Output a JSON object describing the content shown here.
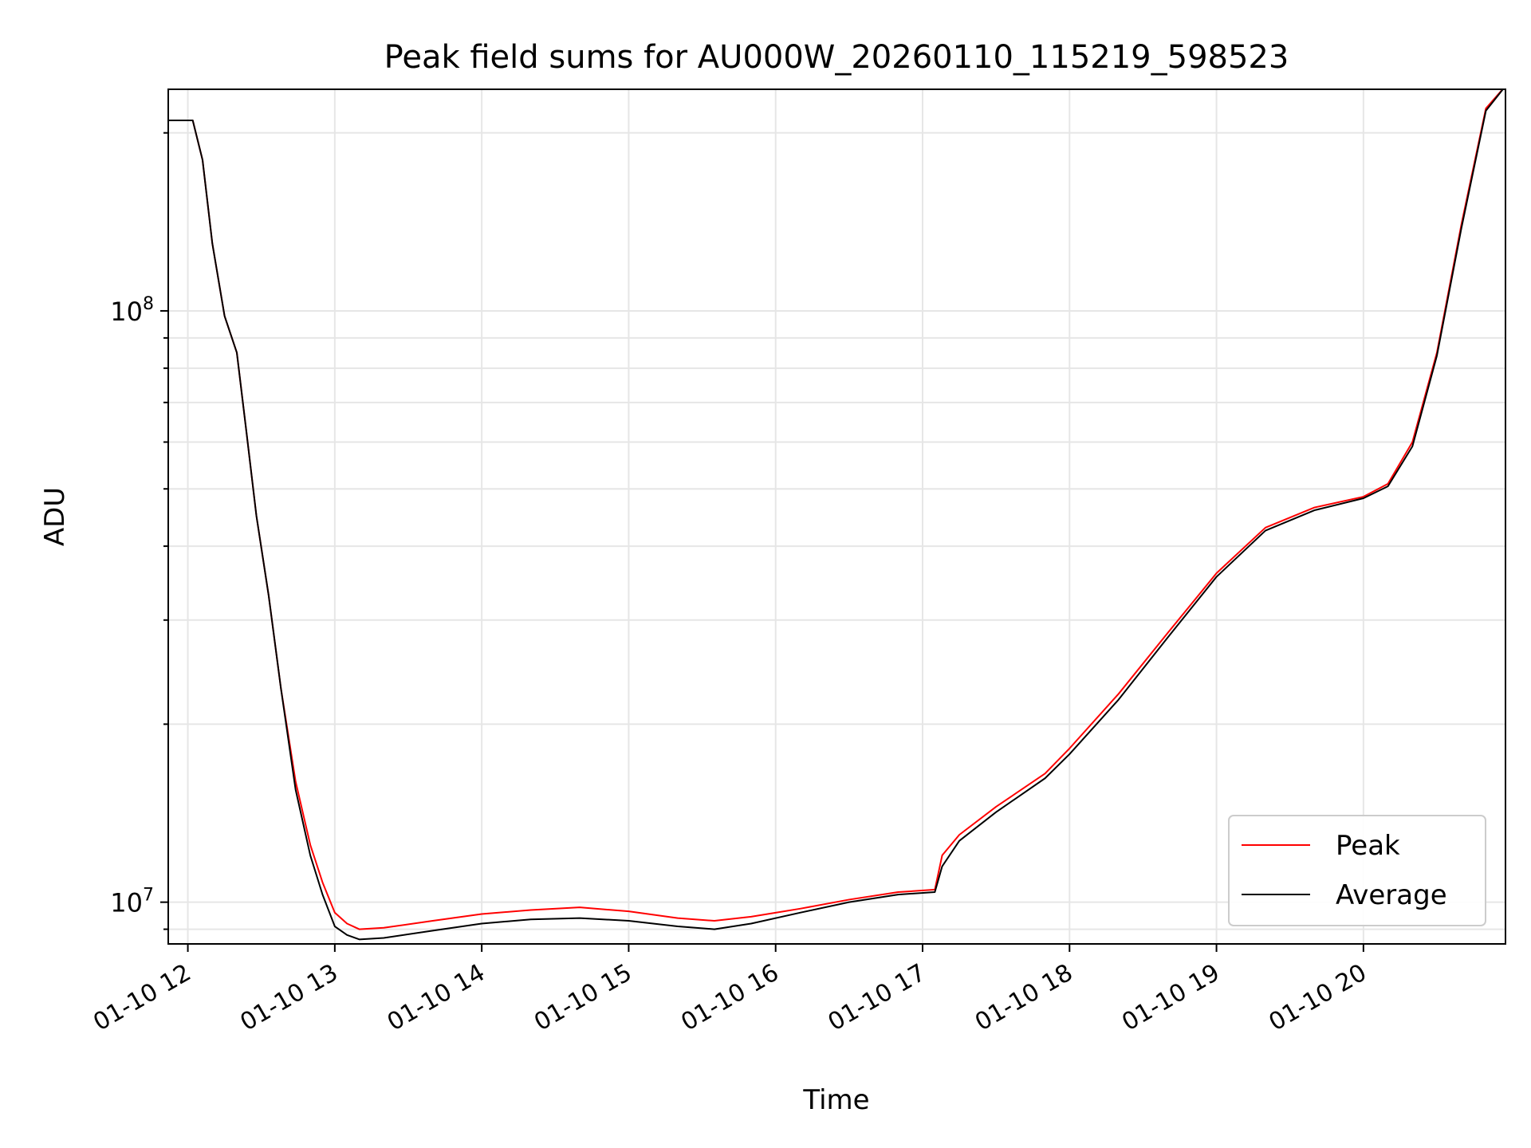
{
  "chart_data": {
    "type": "line",
    "title": "Peak field sums for AU000W_20260110_115219_598523",
    "xlabel": "Time",
    "ylabel": "ADU",
    "y_scale": "log",
    "grid": true,
    "grid_color": "#e6e6e6",
    "legend_position": "lower-right",
    "xlim": [
      "2026-01-10 11:52",
      "2026-01-10 20:58"
    ],
    "ylim": [
      8500000,
      237000000
    ],
    "x_ticks": [
      {
        "t": "2026-01-10 12:00",
        "label": "01-10 12"
      },
      {
        "t": "2026-01-10 13:00",
        "label": "01-10 13"
      },
      {
        "t": "2026-01-10 14:00",
        "label": "01-10 14"
      },
      {
        "t": "2026-01-10 15:00",
        "label": "01-10 15"
      },
      {
        "t": "2026-01-10 16:00",
        "label": "01-10 16"
      },
      {
        "t": "2026-01-10 17:00",
        "label": "01-10 17"
      },
      {
        "t": "2026-01-10 18:00",
        "label": "01-10 18"
      },
      {
        "t": "2026-01-10 19:00",
        "label": "01-10 19"
      },
      {
        "t": "2026-01-10 20:00",
        "label": "01-10 20"
      }
    ],
    "y_major_ticks": [
      {
        "value": 10000000,
        "base": "10",
        "exp": "7"
      },
      {
        "value": 100000000,
        "base": "10",
        "exp": "8"
      }
    ],
    "x_unit": "time (HH:MM, 2026-01-10)",
    "series": [
      {
        "name": "Peak",
        "color": "#ff0000",
        "points": [
          [
            "11:52",
            210000000
          ],
          [
            "12:02",
            210000000
          ],
          [
            "12:06",
            180000000
          ],
          [
            "12:10",
            130000000
          ],
          [
            "12:15",
            98000000
          ],
          [
            "12:20",
            85000000
          ],
          [
            "12:24",
            62000000
          ],
          [
            "12:28",
            45000000
          ],
          [
            "12:33",
            33000000
          ],
          [
            "12:38",
            23000000
          ],
          [
            "12:44",
            16000000
          ],
          [
            "12:50",
            12500000
          ],
          [
            "12:55",
            10800000
          ],
          [
            "13:00",
            9600000
          ],
          [
            "13:05",
            9200000
          ],
          [
            "13:10",
            9000000
          ],
          [
            "13:20",
            9050000
          ],
          [
            "13:40",
            9300000
          ],
          [
            "14:00",
            9550000
          ],
          [
            "14:20",
            9700000
          ],
          [
            "14:40",
            9800000
          ],
          [
            "15:00",
            9650000
          ],
          [
            "15:20",
            9400000
          ],
          [
            "15:35",
            9300000
          ],
          [
            "15:50",
            9450000
          ],
          [
            "16:10",
            9750000
          ],
          [
            "16:30",
            10100000
          ],
          [
            "16:50",
            10400000
          ],
          [
            "17:05",
            10500000
          ],
          [
            "17:08",
            12000000
          ],
          [
            "17:15",
            13000000
          ],
          [
            "17:30",
            14500000
          ],
          [
            "17:50",
            16500000
          ],
          [
            "18:00",
            18200000
          ],
          [
            "18:20",
            22500000
          ],
          [
            "18:40",
            28500000
          ],
          [
            "19:00",
            36000000
          ],
          [
            "19:20",
            43000000
          ],
          [
            "19:40",
            46500000
          ],
          [
            "20:00",
            48500000
          ],
          [
            "20:10",
            51000000
          ],
          [
            "20:20",
            60000000
          ],
          [
            "20:30",
            85000000
          ],
          [
            "20:40",
            140000000
          ],
          [
            "20:50",
            220000000
          ],
          [
            "20:58",
            240000000
          ]
        ]
      },
      {
        "name": "Average",
        "color": "#000000",
        "points": [
          [
            "11:52",
            210000000
          ],
          [
            "12:02",
            210000000
          ],
          [
            "12:06",
            180000000
          ],
          [
            "12:10",
            130000000
          ],
          [
            "12:15",
            98000000
          ],
          [
            "12:20",
            85000000
          ],
          [
            "12:24",
            62000000
          ],
          [
            "12:28",
            45000000
          ],
          [
            "12:33",
            33000000
          ],
          [
            "12:38",
            23000000
          ],
          [
            "12:44",
            15500000
          ],
          [
            "12:50",
            12000000
          ],
          [
            "12:55",
            10300000
          ],
          [
            "13:00",
            9100000
          ],
          [
            "13:05",
            8800000
          ],
          [
            "13:10",
            8650000
          ],
          [
            "13:20",
            8700000
          ],
          [
            "13:40",
            8950000
          ],
          [
            "14:00",
            9200000
          ],
          [
            "14:20",
            9350000
          ],
          [
            "14:40",
            9400000
          ],
          [
            "15:00",
            9300000
          ],
          [
            "15:20",
            9100000
          ],
          [
            "15:35",
            9000000
          ],
          [
            "15:50",
            9200000
          ],
          [
            "16:10",
            9600000
          ],
          [
            "16:30",
            10000000
          ],
          [
            "16:50",
            10300000
          ],
          [
            "17:05",
            10400000
          ],
          [
            "17:08",
            11500000
          ],
          [
            "17:15",
            12700000
          ],
          [
            "17:30",
            14200000
          ],
          [
            "17:50",
            16200000
          ],
          [
            "18:00",
            17800000
          ],
          [
            "18:20",
            22000000
          ],
          [
            "18:40",
            28000000
          ],
          [
            "19:00",
            35500000
          ],
          [
            "19:20",
            42500000
          ],
          [
            "19:40",
            46000000
          ],
          [
            "20:00",
            48200000
          ],
          [
            "20:10",
            50500000
          ],
          [
            "20:20",
            59000000
          ],
          [
            "20:30",
            84000000
          ],
          [
            "20:40",
            138000000
          ],
          [
            "20:50",
            218000000
          ],
          [
            "20:58",
            240000000
          ]
        ]
      }
    ]
  }
}
